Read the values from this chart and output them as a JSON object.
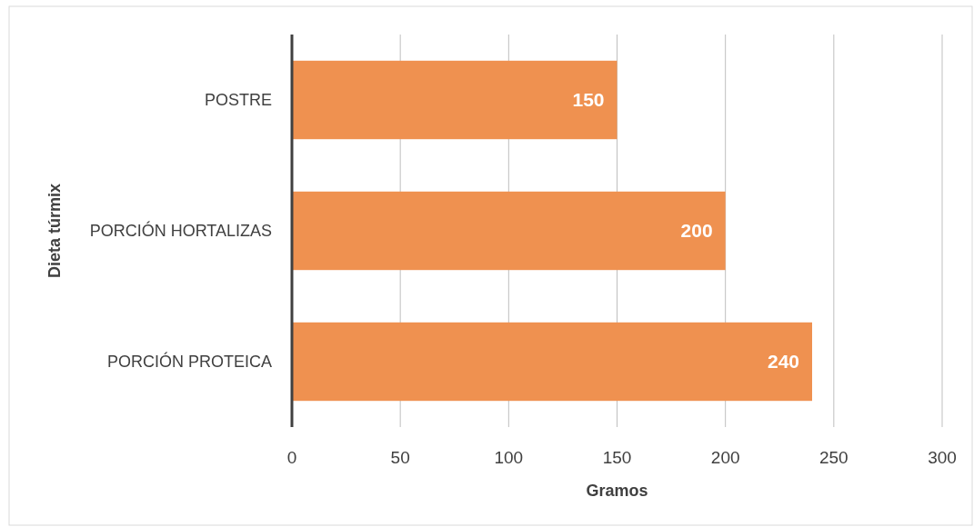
{
  "chart_data": {
    "type": "bar",
    "orientation": "horizontal",
    "xlabel": "Gramos",
    "ylabel": "Dieta túrmix",
    "categories": [
      "POSTRE",
      "PORCIÓN HORTALIZAS",
      "PORCIÓN PROTEICA"
    ],
    "values": [
      150,
      200,
      240
    ],
    "color": "#ef9150",
    "xlim": [
      0,
      300
    ],
    "xticks": [
      0,
      50,
      100,
      150,
      200,
      250,
      300
    ],
    "grid": "x",
    "data_labels": true
  }
}
